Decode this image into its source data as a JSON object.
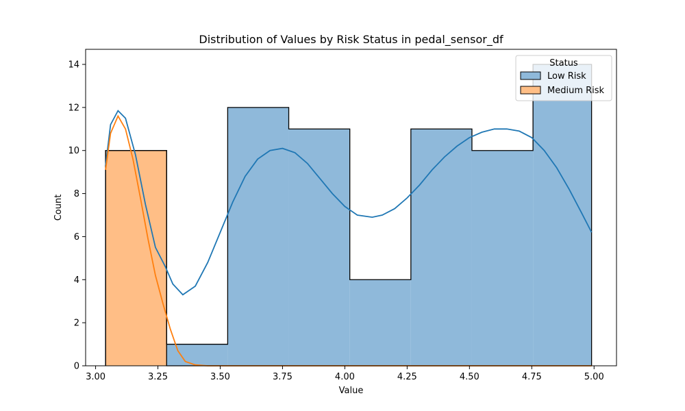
{
  "chart_data": {
    "type": "histogram",
    "title": "Distribution of Values by Risk Status in pedal_sensor_df",
    "xlabel": "Value",
    "ylabel": "Count",
    "xlim": [
      2.96,
      5.09
    ],
    "ylim": [
      0,
      14.7
    ],
    "xticks": [
      3.0,
      3.25,
      3.5,
      3.75,
      4.0,
      4.25,
      4.5,
      4.75,
      5.0
    ],
    "xtick_labels": [
      "3.00",
      "3.25",
      "3.50",
      "3.75",
      "4.00",
      "4.25",
      "4.50",
      "4.75",
      "5.00"
    ],
    "yticks": [
      0,
      2,
      4,
      6,
      8,
      10,
      12,
      14
    ],
    "ytick_labels": [
      "0",
      "2",
      "4",
      "6",
      "8",
      "10",
      "12",
      "14"
    ],
    "bin_edges": [
      3.04,
      3.285,
      3.53,
      3.775,
      4.02,
      4.265,
      4.51,
      4.755,
      4.99
    ],
    "stacked": true,
    "legend": {
      "title": "Status",
      "placement": "top-right",
      "entries": [
        "Low Risk",
        "Medium Risk"
      ]
    },
    "series": [
      {
        "name": "Low Risk",
        "color": "#1f77b4",
        "counts": [
          0,
          1,
          12,
          11,
          4,
          11,
          10,
          14
        ],
        "kde": [
          [
            3.04,
            9.3
          ],
          [
            3.06,
            11.2
          ],
          [
            3.09,
            11.85
          ],
          [
            3.12,
            11.5
          ],
          [
            3.16,
            9.8
          ],
          [
            3.2,
            7.5
          ],
          [
            3.24,
            5.5
          ],
          [
            3.28,
            4.6
          ],
          [
            3.31,
            3.8
          ],
          [
            3.35,
            3.3
          ],
          [
            3.4,
            3.7
          ],
          [
            3.45,
            4.8
          ],
          [
            3.5,
            6.2
          ],
          [
            3.55,
            7.6
          ],
          [
            3.6,
            8.8
          ],
          [
            3.65,
            9.6
          ],
          [
            3.7,
            10.0
          ],
          [
            3.75,
            10.1
          ],
          [
            3.8,
            9.9
          ],
          [
            3.85,
            9.4
          ],
          [
            3.9,
            8.7
          ],
          [
            3.95,
            8.0
          ],
          [
            4.0,
            7.4
          ],
          [
            4.05,
            7.0
          ],
          [
            4.11,
            6.9
          ],
          [
            4.15,
            7.0
          ],
          [
            4.2,
            7.3
          ],
          [
            4.25,
            7.8
          ],
          [
            4.3,
            8.4
          ],
          [
            4.35,
            9.1
          ],
          [
            4.4,
            9.7
          ],
          [
            4.45,
            10.2
          ],
          [
            4.5,
            10.6
          ],
          [
            4.55,
            10.85
          ],
          [
            4.6,
            11.0
          ],
          [
            4.65,
            11.0
          ],
          [
            4.7,
            10.9
          ],
          [
            4.75,
            10.6
          ],
          [
            4.8,
            10.0
          ],
          [
            4.85,
            9.2
          ],
          [
            4.9,
            8.2
          ],
          [
            4.95,
            7.1
          ],
          [
            4.99,
            6.2
          ]
        ]
      },
      {
        "name": "Medium Risk",
        "color": "#ff7f0e",
        "counts": [
          10,
          0,
          0,
          0,
          0,
          0,
          0,
          0
        ],
        "kde": [
          [
            3.04,
            9.1
          ],
          [
            3.06,
            10.8
          ],
          [
            3.09,
            11.6
          ],
          [
            3.12,
            11.0
          ],
          [
            3.15,
            9.6
          ],
          [
            3.18,
            7.8
          ],
          [
            3.21,
            5.9
          ],
          [
            3.24,
            4.2
          ],
          [
            3.27,
            2.9
          ],
          [
            3.3,
            1.7
          ],
          [
            3.33,
            0.7
          ],
          [
            3.36,
            0.2
          ],
          [
            3.4,
            0.04
          ],
          [
            3.45,
            0.0
          ],
          [
            4.99,
            0.0
          ]
        ]
      }
    ]
  }
}
